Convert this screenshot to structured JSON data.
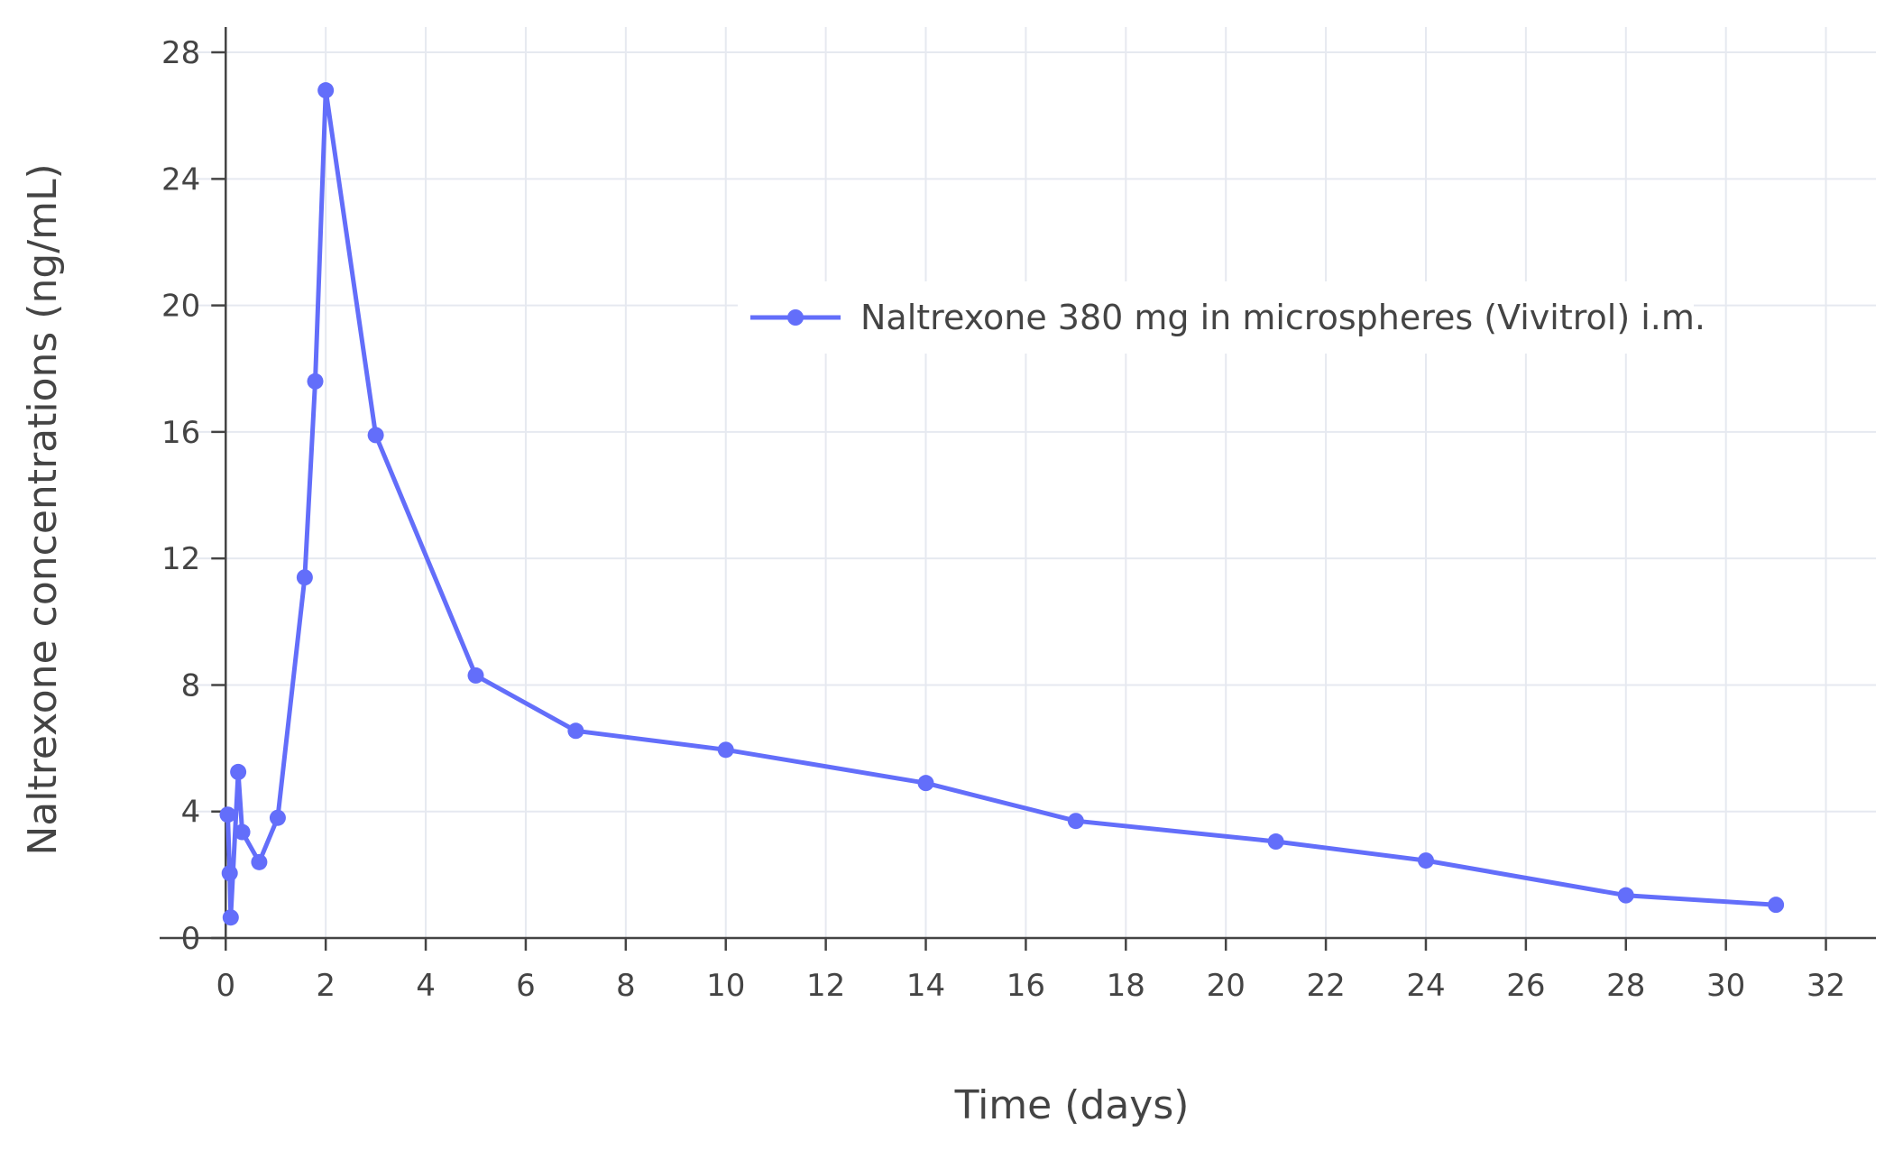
{
  "chart_data": {
    "type": "line",
    "title": "",
    "xlabel": "Time (days)",
    "ylabel": "Naltrexone concentrations (ng/mL)",
    "xlim": [
      -0.6,
      33
    ],
    "ylim": [
      0,
      28.8
    ],
    "xticks": [
      0,
      2,
      4,
      6,
      8,
      10,
      12,
      14,
      16,
      18,
      20,
      22,
      24,
      26,
      28,
      30,
      32
    ],
    "yticks": [
      0,
      4,
      8,
      12,
      16,
      20,
      24,
      28
    ],
    "grid": true,
    "legend_position": "upper-right",
    "series": [
      {
        "name": "Naltrexone 380 mg in microspheres (Vivitrol) i.m.",
        "color": "#636efa",
        "marker": "circle",
        "x": [
          0.04,
          0.08,
          0.1,
          0.25,
          0.33,
          0.67,
          1.04,
          1.58,
          1.79,
          2.0,
          3.0,
          5.0,
          7.0,
          10.0,
          14.0,
          17.0,
          21.0,
          24.0,
          28.0,
          31.0
        ],
        "y": [
          3.9,
          2.05,
          0.65,
          5.25,
          3.35,
          2.4,
          3.8,
          11.4,
          17.6,
          26.8,
          15.9,
          8.3,
          6.55,
          5.95,
          4.9,
          3.7,
          3.05,
          2.45,
          1.35,
          1.05
        ]
      }
    ]
  }
}
